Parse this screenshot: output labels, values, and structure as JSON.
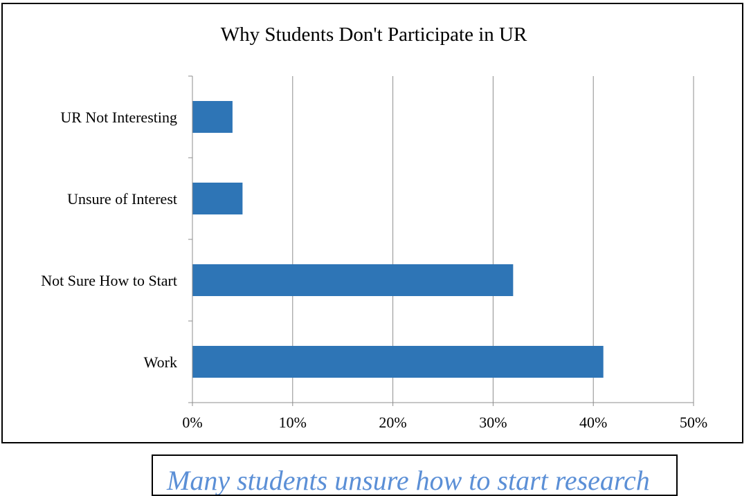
{
  "chart_data": {
    "type": "bar",
    "orientation": "horizontal",
    "title": "Why Students Don't Participate in UR",
    "xlabel": "",
    "ylabel": "",
    "categories": [
      "UR Not Interesting",
      "Unsure of Interest",
      "Not Sure How to Start",
      "Work"
    ],
    "values": [
      4,
      5,
      32,
      41
    ],
    "unit": "%",
    "xlim": [
      0,
      50
    ],
    "x_ticks": [
      "0%",
      "10%",
      "20%",
      "30%",
      "40%",
      "50%"
    ],
    "grid": "vertical major gridlines",
    "legend": "none",
    "bar_color": "#2e75b6"
  },
  "caption": {
    "text": "Many students unsure how to start research",
    "color": "#5b8fd6"
  }
}
